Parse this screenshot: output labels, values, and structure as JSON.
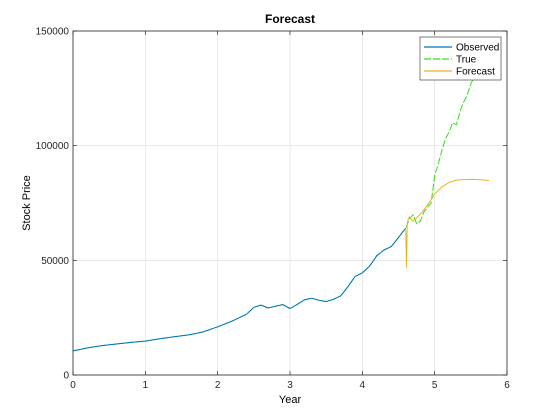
{
  "chart_data": {
    "type": "line",
    "title": "Forecast",
    "xlabel": "Year",
    "ylabel": "Stock Price",
    "xlim": [
      0,
      6
    ],
    "ylim": [
      0,
      150000
    ],
    "xticks": [
      0,
      1,
      2,
      3,
      4,
      5,
      6
    ],
    "xtick_labels": [
      "0",
      "1",
      "2",
      "3",
      "4",
      "5",
      "6"
    ],
    "yticks": [
      0,
      50000,
      100000,
      150000
    ],
    "ytick_labels": [
      "0",
      "50000",
      "100000",
      "150000"
    ],
    "grid": true,
    "legend": "top-right",
    "series": [
      {
        "name": "Observed",
        "color": "#0072BD",
        "x": [
          0,
          0.2,
          0.4,
          0.6,
          0.8,
          1.0,
          1.2,
          1.4,
          1.6,
          1.8,
          2.0,
          2.2,
          2.4,
          2.5,
          2.6,
          2.7,
          2.8,
          2.9,
          3.0,
          3.1,
          3.2,
          3.3,
          3.4,
          3.5,
          3.6,
          3.7,
          3.8,
          3.9,
          4.0,
          4.1,
          4.2,
          4.3,
          4.4,
          4.5,
          4.6
        ],
        "y": [
          10500,
          11800,
          12800,
          13500,
          14200,
          14800,
          15800,
          16700,
          17500,
          18800,
          21000,
          23500,
          26500,
          29500,
          30500,
          29200,
          30000,
          30700,
          29000,
          30800,
          32800,
          33500,
          32600,
          32000,
          33000,
          34500,
          38500,
          43000,
          44500,
          47500,
          52000,
          54500,
          56000,
          60000,
          64000
        ]
      },
      {
        "name": "True",
        "color": "#33dd22",
        "dashed": true,
        "x": [
          0,
          0.2,
          0.4,
          0.6,
          0.8,
          1.0,
          1.2,
          1.4,
          1.6,
          1.8,
          2.0,
          2.2,
          2.4,
          2.5,
          2.6,
          2.7,
          2.8,
          2.9,
          3.0,
          3.1,
          3.2,
          3.3,
          3.4,
          3.5,
          3.6,
          3.7,
          3.8,
          3.9,
          4.0,
          4.1,
          4.2,
          4.3,
          4.4,
          4.5,
          4.6,
          4.65,
          4.7,
          4.75,
          4.8,
          4.85,
          4.9,
          4.95,
          5.0,
          5.05,
          5.1,
          5.15,
          5.2,
          5.25,
          5.3,
          5.35,
          5.4,
          5.45,
          5.5,
          5.55,
          5.6
        ],
        "y": [
          10500,
          11800,
          12800,
          13500,
          14200,
          14800,
          15800,
          16700,
          17500,
          18800,
          21000,
          23500,
          26500,
          29500,
          30500,
          29200,
          30000,
          30700,
          29000,
          30800,
          32800,
          33500,
          32600,
          32000,
          33000,
          34500,
          38500,
          43000,
          44500,
          47500,
          52000,
          54500,
          56000,
          60000,
          64000,
          68000,
          70000,
          66000,
          67000,
          71000,
          73000,
          75000,
          87000,
          92000,
          98000,
          103000,
          106000,
          110000,
          109000,
          115000,
          119000,
          122000,
          127000,
          130000,
          131000
        ]
      },
      {
        "name": "Forecast",
        "color": "#EDB120",
        "x": [
          4.6,
          4.61,
          4.62,
          4.63,
          4.65,
          4.7,
          4.75,
          4.8,
          4.85,
          4.9,
          4.95,
          5.0,
          5.1,
          5.2,
          5.3,
          5.4,
          5.5,
          5.6,
          5.7,
          5.75
        ],
        "y": [
          63000,
          47000,
          66000,
          67500,
          69000,
          67000,
          68500,
          70000,
          72000,
          74000,
          76500,
          79000,
          82000,
          84000,
          85000,
          85200,
          85300,
          85200,
          85000,
          84800
        ]
      }
    ]
  }
}
